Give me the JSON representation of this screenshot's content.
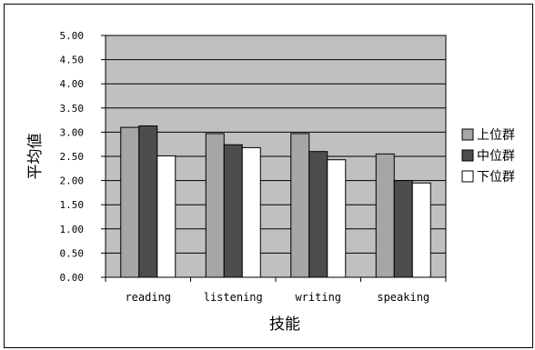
{
  "chart_data": {
    "type": "bar",
    "title": "",
    "xlabel": "技能",
    "ylabel": "平均値",
    "categories": [
      "reading",
      "listening",
      "writing",
      "speaking"
    ],
    "series": [
      {
        "name": "上位群",
        "values": [
          3.1,
          2.97,
          2.97,
          2.55
        ]
      },
      {
        "name": "中位群",
        "values": [
          3.13,
          2.74,
          2.6,
          2.0
        ]
      },
      {
        "name": "下位群",
        "values": [
          2.51,
          2.68,
          2.43,
          1.95
        ]
      }
    ],
    "ylim": [
      0,
      5
    ],
    "yticks": [
      "0.00",
      "0.50",
      "1.00",
      "1.50",
      "2.00",
      "2.50",
      "3.00",
      "3.50",
      "4.00",
      "4.50",
      "5.00"
    ],
    "grid": true,
    "legend_position": "right",
    "colors": {
      "plot_background": "#c0c0c0",
      "series": [
        "#a6a6a6",
        "#4d4d4d",
        "#ffffff"
      ],
      "gridline": "#000000"
    }
  }
}
